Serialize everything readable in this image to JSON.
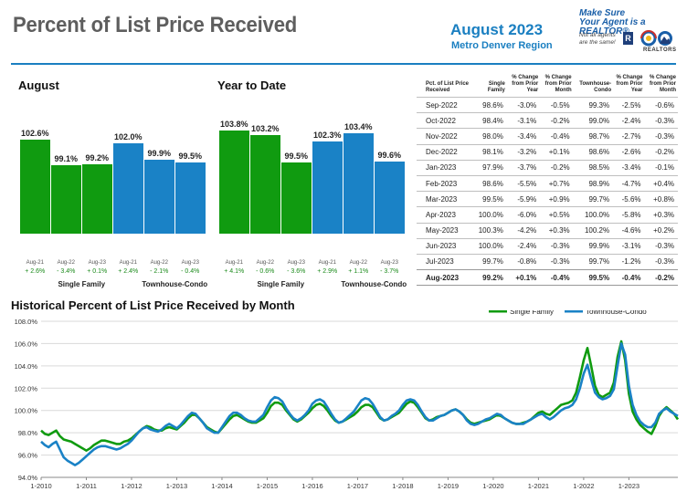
{
  "header": {
    "title": "Percent of List Price Received",
    "month": "August 2023",
    "region": "Metro Denver Region",
    "badge_line1": "Make Sure",
    "badge_line2": "Your Agent is a REALTOR®",
    "badge_note1": "Not all agents",
    "badge_note2": "are the same!",
    "logo_r": "R",
    "logo_text": "REALTORS"
  },
  "colors": {
    "single_family": "#109b10",
    "townhouse": "#1a82c6",
    "brand": "#1a7fc1"
  },
  "august": {
    "title": "August",
    "bars": [
      {
        "label": "102.6%",
        "x": "Aug-21",
        "change": "+ 2.6%",
        "value": 102.6,
        "series": "single_family"
      },
      {
        "label": "99.1%",
        "x": "Aug-22",
        "change": "- 3.4%",
        "value": 99.1,
        "series": "single_family"
      },
      {
        "label": "99.2%",
        "x": "Aug-23",
        "change": "+ 0.1%",
        "value": 99.2,
        "series": "single_family"
      },
      {
        "label": "102.0%",
        "x": "Aug-21",
        "change": "+ 2.4%",
        "value": 102.0,
        "series": "townhouse"
      },
      {
        "label": "99.9%",
        "x": "Aug-22",
        "change": "- 2.1%",
        "value": 99.9,
        "series": "townhouse"
      },
      {
        "label": "99.5%",
        "x": "Aug-23",
        "change": "- 0.4%",
        "value": 99.5,
        "series": "townhouse"
      }
    ],
    "group1": "Single Family",
    "group2": "Townhouse-Condo"
  },
  "ytd": {
    "title": "Year to Date",
    "bars": [
      {
        "label": "103.8%",
        "x": "Aug-21",
        "change": "+ 4.1%",
        "value": 103.8,
        "series": "single_family"
      },
      {
        "label": "103.2%",
        "x": "Aug-22",
        "change": "- 0.6%",
        "value": 103.2,
        "series": "single_family"
      },
      {
        "label": "99.5%",
        "x": "Aug-23",
        "change": "- 3.6%",
        "value": 99.5,
        "series": "single_family"
      },
      {
        "label": "102.3%",
        "x": "Aug-21",
        "change": "+ 2.9%",
        "value": 102.3,
        "series": "townhouse"
      },
      {
        "label": "103.4%",
        "x": "Aug-22",
        "change": "+ 1.1%",
        "value": 103.4,
        "series": "townhouse"
      },
      {
        "label": "99.6%",
        "x": "Aug-23",
        "change": "- 3.7%",
        "value": 99.6,
        "series": "townhouse"
      }
    ],
    "group1": "Single Family",
    "group2": "Townhouse-Condo"
  },
  "table": {
    "headers": [
      "Pct. of List Price Received",
      "Single Family",
      "% Change from Prior Year",
      "% Change from Prior Month",
      "Townhouse-Condo",
      "% Change from Prior Year",
      "% Change from Prior Month"
    ],
    "rows": [
      [
        "Sep-2022",
        "98.6%",
        "-3.0%",
        "-0.5%",
        "99.3%",
        "-2.5%",
        "-0.6%"
      ],
      [
        "Oct-2022",
        "98.4%",
        "-3.1%",
        "-0.2%",
        "99.0%",
        "-2.4%",
        "-0.3%"
      ],
      [
        "Nov-2022",
        "98.0%",
        "-3.4%",
        "-0.4%",
        "98.7%",
        "-2.7%",
        "-0.3%"
      ],
      [
        "Dec-2022",
        "98.1%",
        "-3.2%",
        "+0.1%",
        "98.6%",
        "-2.6%",
        "-0.2%"
      ],
      [
        "Jan-2023",
        "97.9%",
        "-3.7%",
        "-0.2%",
        "98.5%",
        "-3.4%",
        "-0.1%"
      ],
      [
        "Feb-2023",
        "98.6%",
        "-5.5%",
        "+0.7%",
        "98.9%",
        "-4.7%",
        "+0.4%"
      ],
      [
        "Mar-2023",
        "99.5%",
        "-5.9%",
        "+0.9%",
        "99.7%",
        "-5.6%",
        "+0.8%"
      ],
      [
        "Apr-2023",
        "100.0%",
        "-6.0%",
        "+0.5%",
        "100.0%",
        "-5.8%",
        "+0.3%"
      ],
      [
        "May-2023",
        "100.3%",
        "-4.2%",
        "+0.3%",
        "100.2%",
        "-4.6%",
        "+0.2%"
      ],
      [
        "Jun-2023",
        "100.0%",
        "-2.4%",
        "-0.3%",
        "99.9%",
        "-3.1%",
        "-0.3%"
      ],
      [
        "Jul-2023",
        "99.7%",
        "-0.8%",
        "-0.3%",
        "99.7%",
        "-1.2%",
        "-0.3%"
      ],
      [
        "Aug-2023",
        "99.2%",
        "+0.1%",
        "-0.4%",
        "99.5%",
        "-0.4%",
        "-0.2%"
      ]
    ]
  },
  "chart_data": {
    "type": "line",
    "title": "Historical Percent of List Price Received by Month",
    "xlabel": "",
    "ylabel": "",
    "ylim": [
      94,
      108
    ],
    "yticks": [
      "94.0%",
      "96.0%",
      "98.0%",
      "100.0%",
      "102.0%",
      "104.0%",
      "106.0%",
      "108.0%"
    ],
    "xticks": [
      "1-2010",
      "1-2011",
      "1-2012",
      "1-2013",
      "1-2014",
      "1-2015",
      "1-2016",
      "1-2017",
      "1-2018",
      "1-2019",
      "1-2020",
      "1-2021",
      "1-2022",
      "1-2023"
    ],
    "x_start": "2010-01",
    "x_step": "1 month",
    "grid": true,
    "legend": "top-right",
    "series": [
      {
        "name": "Single Family",
        "color": "#109b10",
        "values": [
          98.2,
          97.9,
          97.8,
          98.0,
          98.2,
          97.7,
          97.4,
          97.3,
          97.2,
          97.0,
          96.8,
          96.6,
          96.4,
          96.6,
          96.9,
          97.1,
          97.3,
          97.3,
          97.2,
          97.1,
          97.0,
          97.0,
          97.2,
          97.3,
          97.5,
          97.8,
          98.1,
          98.4,
          98.6,
          98.5,
          98.3,
          98.2,
          98.2,
          98.4,
          98.5,
          98.4,
          98.3,
          98.6,
          98.9,
          99.3,
          99.6,
          99.6,
          99.3,
          98.9,
          98.5,
          98.3,
          98.1,
          98.0,
          98.4,
          98.8,
          99.2,
          99.5,
          99.6,
          99.4,
          99.2,
          99.0,
          98.9,
          98.9,
          99.1,
          99.3,
          99.8,
          100.4,
          100.7,
          100.7,
          100.5,
          100.0,
          99.6,
          99.2,
          99.0,
          99.2,
          99.5,
          99.8,
          100.2,
          100.5,
          100.6,
          100.4,
          100.0,
          99.5,
          99.1,
          98.9,
          99.0,
          99.2,
          99.4,
          99.6,
          99.9,
          100.3,
          100.5,
          100.5,
          100.3,
          99.8,
          99.3,
          99.1,
          99.2,
          99.4,
          99.6,
          99.8,
          100.2,
          100.6,
          100.8,
          100.7,
          100.3,
          99.8,
          99.3,
          99.1,
          99.2,
          99.4,
          99.5,
          99.6,
          99.8,
          100.0,
          100.1,
          99.9,
          99.6,
          99.2,
          98.9,
          98.8,
          98.9,
          99.0,
          99.1,
          99.2,
          99.4,
          99.6,
          99.5,
          99.3,
          99.1,
          98.9,
          98.8,
          98.8,
          98.9,
          99.0,
          99.2,
          99.5,
          99.8,
          99.9,
          99.7,
          99.6,
          99.9,
          100.2,
          100.5,
          100.6,
          100.7,
          100.9,
          101.6,
          103.0,
          104.5,
          105.6,
          104.0,
          102.2,
          101.4,
          101.2,
          101.4,
          101.6,
          102.5,
          104.8,
          106.2,
          104.5,
          101.5,
          99.9,
          99.2,
          98.7,
          98.4,
          98.1,
          97.9,
          98.6,
          99.5,
          100.0,
          100.3,
          100.0,
          99.7,
          99.2
        ]
      },
      {
        "name": "Townhouse-Condo",
        "color": "#1a82c6",
        "values": [
          97.2,
          96.9,
          96.7,
          97.0,
          97.2,
          96.5,
          95.8,
          95.5,
          95.3,
          95.1,
          95.3,
          95.6,
          95.9,
          96.2,
          96.5,
          96.7,
          96.8,
          96.8,
          96.7,
          96.6,
          96.5,
          96.6,
          96.8,
          97.0,
          97.3,
          97.7,
          98.1,
          98.4,
          98.5,
          98.3,
          98.2,
          98.1,
          98.3,
          98.6,
          98.8,
          98.6,
          98.4,
          98.7,
          99.1,
          99.5,
          99.8,
          99.7,
          99.3,
          98.9,
          98.4,
          98.2,
          98.0,
          98.0,
          98.5,
          99.0,
          99.5,
          99.8,
          99.8,
          99.6,
          99.3,
          99.1,
          99.0,
          99.0,
          99.3,
          99.6,
          100.3,
          100.9,
          101.2,
          101.1,
          100.8,
          100.2,
          99.7,
          99.3,
          99.1,
          99.3,
          99.6,
          100.0,
          100.6,
          100.9,
          101.0,
          100.8,
          100.3,
          99.7,
          99.2,
          98.9,
          99.0,
          99.3,
          99.6,
          99.9,
          100.4,
          100.9,
          101.1,
          101.0,
          100.6,
          100.0,
          99.4,
          99.1,
          99.2,
          99.5,
          99.7,
          100.0,
          100.5,
          100.9,
          101.0,
          100.9,
          100.5,
          99.9,
          99.4,
          99.1,
          99.1,
          99.3,
          99.5,
          99.6,
          99.8,
          100.0,
          100.1,
          99.9,
          99.6,
          99.1,
          98.8,
          98.7,
          98.8,
          99.0,
          99.2,
          99.3,
          99.5,
          99.7,
          99.6,
          99.3,
          99.1,
          98.9,
          98.8,
          98.8,
          98.8,
          99.0,
          99.2,
          99.4,
          99.6,
          99.7,
          99.4,
          99.2,
          99.4,
          99.7,
          100.0,
          100.2,
          100.3,
          100.5,
          101.0,
          102.0,
          103.3,
          104.1,
          102.8,
          101.6,
          101.2,
          101.0,
          101.1,
          101.3,
          101.9,
          104.0,
          106.0,
          105.0,
          102.2,
          100.5,
          99.6,
          99.0,
          98.7,
          98.5,
          98.5,
          98.9,
          99.7,
          100.0,
          100.2,
          99.9,
          99.7,
          99.5
        ]
      }
    ]
  }
}
